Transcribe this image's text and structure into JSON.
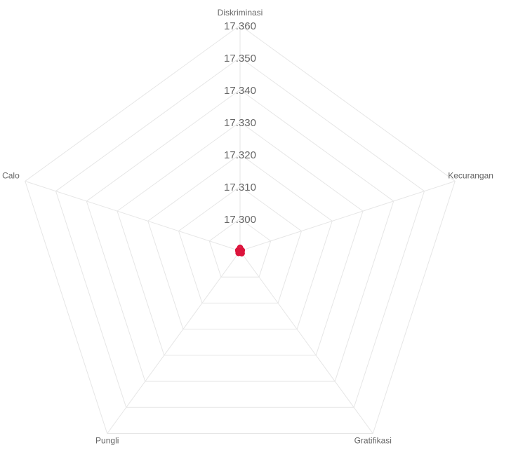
{
  "chart_data": {
    "type": "radar",
    "axes": [
      "Diskriminasi",
      "Kecurangan",
      "Gratifikasi",
      "Pungli",
      "Calo"
    ],
    "ticks": [
      "17.300",
      "17.310",
      "17.320",
      "17.330",
      "17.340",
      "17.350",
      "17.360"
    ],
    "r_range": [
      17.29,
      17.36
    ],
    "grid": true,
    "series": [
      {
        "color": "#dc143c",
        "values": [
          17.2908,
          17.2906,
          17.2909,
          17.2907,
          17.2906
        ]
      },
      {
        "color": "#dc143c",
        "values": [
          17.2903,
          17.2905,
          17.2907,
          17.2904,
          17.2906
        ]
      },
      {
        "color": "#dc143c",
        "values": [
          17.291,
          17.2902,
          17.2905,
          17.2908,
          17.2903
        ]
      }
    ]
  }
}
